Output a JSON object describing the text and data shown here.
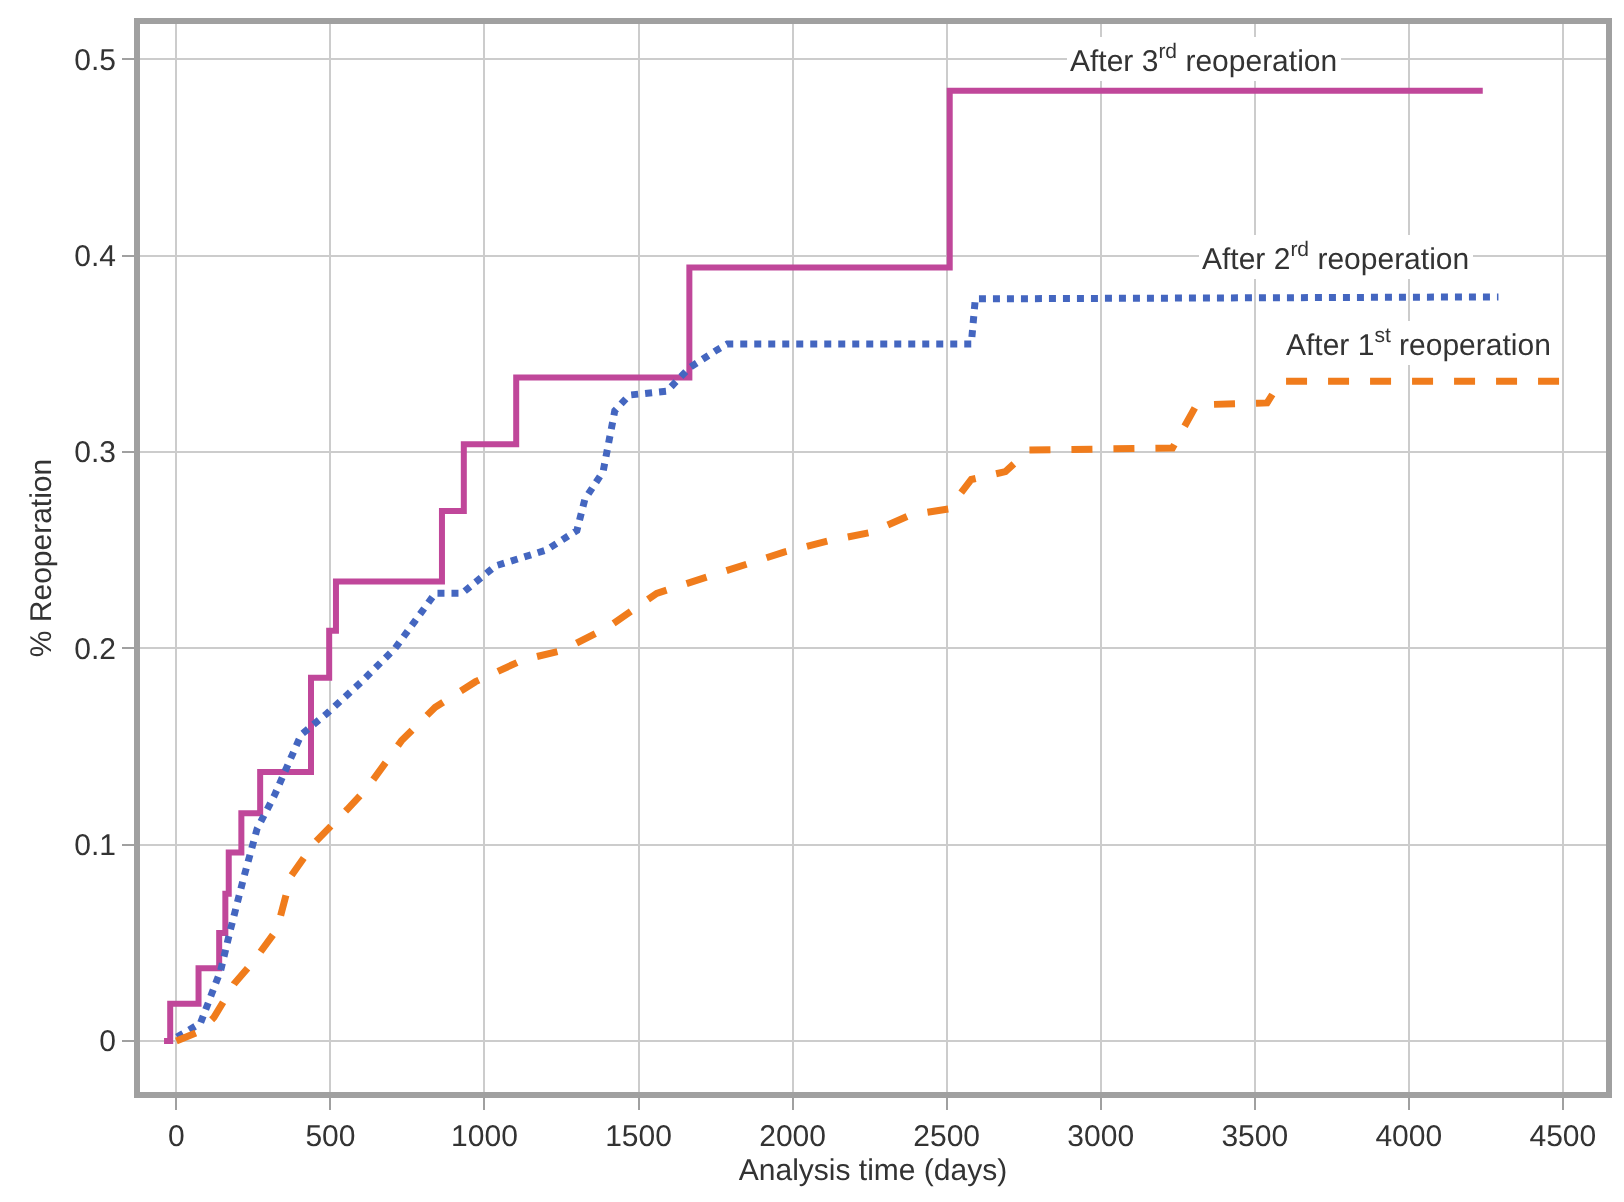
{
  "chart_data": {
    "type": "line",
    "xlabel": "Analysis time (days)",
    "ylabel": "% Reoperation",
    "xlim": [
      -118,
      4640
    ],
    "ylim": [
      -0.026,
      0.518
    ],
    "xticks": [
      0,
      500,
      1000,
      1500,
      2000,
      2500,
      3000,
      3500,
      4000,
      4500
    ],
    "yticks": [
      0,
      0.1,
      0.2,
      0.3,
      0.4,
      0.5
    ],
    "grid": true,
    "marker": "none",
    "series": [
      {
        "name": "After 3$^{rd}$ reoperation",
        "type": "step",
        "color": "#c0479a",
        "line_style": "solid",
        "x": [
          -40,
          -20,
          72,
          139,
          159,
          170,
          211,
          272,
          437,
          496,
          518,
          862,
          933,
          1103,
          1665,
          2510,
          4240
        ],
        "values": [
          0,
          0.019,
          0.037,
          0.055,
          0.075,
          0.096,
          0.116,
          0.137,
          0.185,
          0.209,
          0.234,
          0.27,
          0.304,
          0.338,
          0.394,
          0.484,
          0.484
        ]
      },
      {
        "name": "After 2$^{rd}$ reoperation",
        "color": "#4466c0",
        "line_style": "dotted",
        "x": [
          2,
          78,
          144,
          176,
          220,
          262,
          318,
          405,
          490,
          601,
          710,
          775,
          840,
          927,
          1036,
          1200,
          1300,
          1326,
          1385,
          1423,
          1470,
          1592,
          1666,
          1755,
          1788,
          2580,
          2593,
          4291
        ],
        "values": [
          0.002,
          0.009,
          0.036,
          0.057,
          0.084,
          0.108,
          0.125,
          0.156,
          0.167,
          0.183,
          0.2,
          0.214,
          0.228,
          0.228,
          0.242,
          0.25,
          0.26,
          0.276,
          0.29,
          0.321,
          0.329,
          0.331,
          0.343,
          0.352,
          0.355,
          0.355,
          0.378,
          0.379
        ]
      },
      {
        "name": "After 1$^{st}$ reoperation",
        "color": "#f07c1c",
        "line_style": "dashed",
        "x": [
          0,
          78,
          122,
          187,
          253,
          327,
          372,
          449,
          555,
          620,
          731,
          840,
          971,
          1123,
          1254,
          1404,
          1559,
          1755,
          1972,
          2123,
          2253,
          2384,
          2506,
          2580,
          2691,
          2767,
          3233,
          3311,
          3540,
          3584,
          4513
        ],
        "values": [
          0,
          0.005,
          0.012,
          0.029,
          0.041,
          0.057,
          0.084,
          0.101,
          0.118,
          0.129,
          0.153,
          0.17,
          0.183,
          0.194,
          0.199,
          0.211,
          0.228,
          0.238,
          0.249,
          0.255,
          0.259,
          0.268,
          0.271,
          0.286,
          0.29,
          0.301,
          0.302,
          0.324,
          0.325,
          0.336,
          0.336
        ]
      }
    ]
  }
}
